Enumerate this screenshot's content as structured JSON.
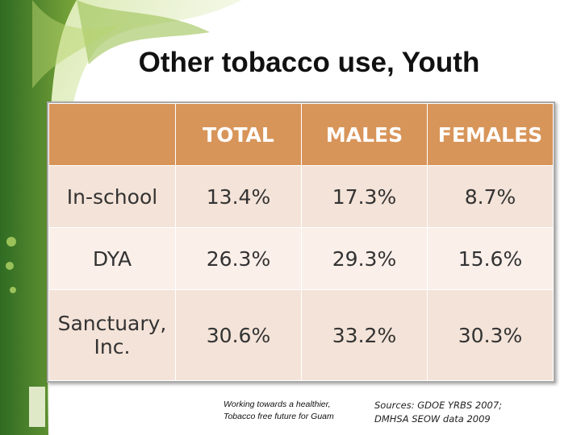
{
  "title": "Other tobacco use, Youth",
  "table": {
    "columns": [
      "TOTAL",
      "MALES",
      "FEMALES"
    ],
    "rows": [
      {
        "label": "In-school",
        "cells": [
          "13.4%",
          "17.3%",
          "8.7%"
        ]
      },
      {
        "label": "DYA",
        "cells": [
          "26.3%",
          "29.3%",
          "15.6%"
        ]
      },
      {
        "label": "Sanctuary, Inc.",
        "cells": [
          "30.6%",
          "33.2%",
          "30.3%"
        ]
      }
    ]
  },
  "footer": {
    "tagline": [
      "Working towards a healthier,",
      "Tobacco free future for Guam"
    ],
    "sources": [
      "Sources:  GDOE YRBS 2007;",
      "DMHSA SEOW data 2009"
    ]
  }
}
